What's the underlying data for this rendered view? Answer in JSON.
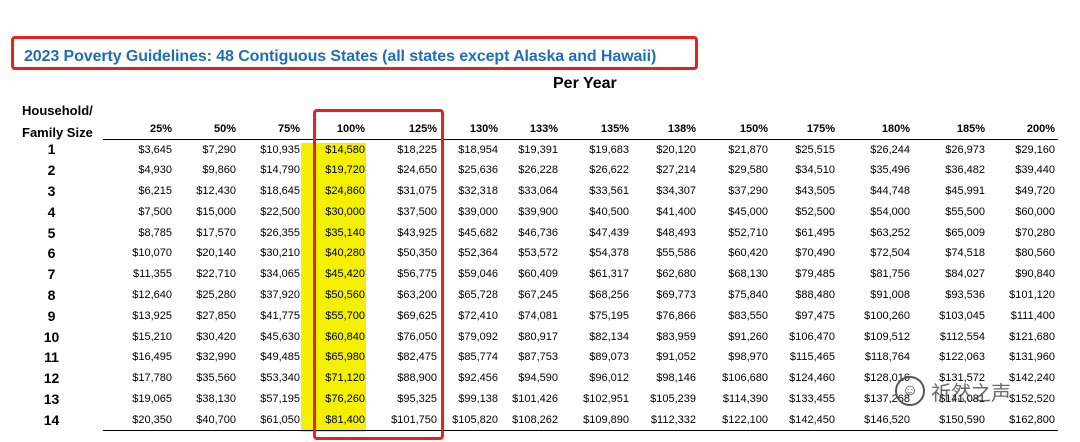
{
  "header": {
    "title": "2023 Poverty Guidelines: 48 Contiguous States (all states except Alaska and Hawaii)",
    "per_year": "Per Year",
    "household_label_line1": "Household/",
    "household_label_line2": "Family Size"
  },
  "table": {
    "columns": [
      "25%",
      "50%",
      "75%",
      "100%",
      "125%",
      "130%",
      "133%",
      "135%",
      "138%",
      "150%",
      "175%",
      "180%",
      "185%",
      "200%"
    ],
    "rows": [
      {
        "size": "1",
        "values": [
          "$3,645",
          "$7,290",
          "$10,935",
          "$14,580",
          "$18,225",
          "$18,954",
          "$19,391",
          "$19,683",
          "$20,120",
          "$21,870",
          "$25,515",
          "$26,244",
          "$26,973",
          "$29,160"
        ]
      },
      {
        "size": "2",
        "values": [
          "$4,930",
          "$9,860",
          "$14,790",
          "$19,720",
          "$24,650",
          "$25,636",
          "$26,228",
          "$26,622",
          "$27,214",
          "$29,580",
          "$34,510",
          "$35,496",
          "$36,482",
          "$39,440"
        ]
      },
      {
        "size": "3",
        "values": [
          "$6,215",
          "$12,430",
          "$18,645",
          "$24,860",
          "$31,075",
          "$32,318",
          "$33,064",
          "$33,561",
          "$34,307",
          "$37,290",
          "$43,505",
          "$44,748",
          "$45,991",
          "$49,720"
        ]
      },
      {
        "size": "4",
        "values": [
          "$7,500",
          "$15,000",
          "$22,500",
          "$30,000",
          "$37,500",
          "$39,000",
          "$39,900",
          "$40,500",
          "$41,400",
          "$45,000",
          "$52,500",
          "$54,000",
          "$55,500",
          "$60,000"
        ]
      },
      {
        "size": "5",
        "values": [
          "$8,785",
          "$17,570",
          "$26,355",
          "$35,140",
          "$43,925",
          "$45,682",
          "$46,736",
          "$47,439",
          "$48,493",
          "$52,710",
          "$61,495",
          "$63,252",
          "$65,009",
          "$70,280"
        ]
      },
      {
        "size": "6",
        "values": [
          "$10,070",
          "$20,140",
          "$30,210",
          "$40,280",
          "$50,350",
          "$52,364",
          "$53,572",
          "$54,378",
          "$55,586",
          "$60,420",
          "$70,490",
          "$72,504",
          "$74,518",
          "$80,560"
        ]
      },
      {
        "size": "7",
        "values": [
          "$11,355",
          "$22,710",
          "$34,065",
          "$45,420",
          "$56,775",
          "$59,046",
          "$60,409",
          "$61,317",
          "$62,680",
          "$68,130",
          "$79,485",
          "$81,756",
          "$84,027",
          "$90,840"
        ]
      },
      {
        "size": "8",
        "values": [
          "$12,640",
          "$25,280",
          "$37,920",
          "$50,560",
          "$63,200",
          "$65,728",
          "$67,245",
          "$68,256",
          "$69,773",
          "$75,840",
          "$88,480",
          "$91,008",
          "$93,536",
          "$101,120"
        ]
      },
      {
        "size": "9",
        "values": [
          "$13,925",
          "$27,850",
          "$41,775",
          "$55,700",
          "$69,625",
          "$72,410",
          "$74,081",
          "$75,195",
          "$76,866",
          "$83,550",
          "$97,475",
          "$100,260",
          "$103,045",
          "$111,400"
        ]
      },
      {
        "size": "10",
        "values": [
          "$15,210",
          "$30,420",
          "$45,630",
          "$60,840",
          "$76,050",
          "$79,092",
          "$80,917",
          "$82,134",
          "$83,959",
          "$91,260",
          "$106,470",
          "$109,512",
          "$112,554",
          "$121,680"
        ]
      },
      {
        "size": "11",
        "values": [
          "$16,495",
          "$32,990",
          "$49,485",
          "$65,980",
          "$82,475",
          "$85,774",
          "$87,753",
          "$89,073",
          "$91,052",
          "$98,970",
          "$115,465",
          "$118,764",
          "$122,063",
          "$131,960"
        ]
      },
      {
        "size": "12",
        "values": [
          "$17,780",
          "$35,560",
          "$53,340",
          "$71,120",
          "$88,900",
          "$92,456",
          "$94,590",
          "$96,012",
          "$98,146",
          "$106,680",
          "$124,460",
          "$128,016",
          "$131,572",
          "$142,240"
        ]
      },
      {
        "size": "13",
        "values": [
          "$19,065",
          "$38,130",
          "$57,195",
          "$76,260",
          "$95,325",
          "$99,138",
          "$101,426",
          "$102,951",
          "$105,239",
          "$114,390",
          "$133,455",
          "$137,268",
          "$141,081",
          "$152,520"
        ]
      },
      {
        "size": "14",
        "values": [
          "$20,350",
          "$40,700",
          "$61,050",
          "$81,400",
          "$101,750",
          "$105,820",
          "$108,262",
          "$109,890",
          "$112,332",
          "$122,100",
          "$142,450",
          "$146,520",
          "$150,590",
          "$162,800"
        ]
      }
    ]
  },
  "watermark": {
    "icon": "wechat-icon",
    "text": "祈然之声"
  },
  "colors": {
    "title_blue": "#1f6fb8",
    "highlight_red": "#e8201e",
    "highlight_yellow": "#f4f000"
  }
}
